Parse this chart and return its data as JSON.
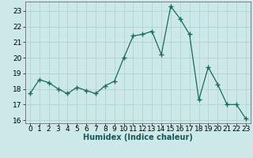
{
  "x": [
    0,
    1,
    2,
    3,
    4,
    5,
    6,
    7,
    8,
    9,
    10,
    11,
    12,
    13,
    14,
    15,
    16,
    17,
    18,
    19,
    20,
    21,
    22,
    23
  ],
  "y": [
    17.7,
    18.6,
    18.4,
    18.0,
    17.7,
    18.1,
    17.9,
    17.7,
    18.2,
    18.5,
    20.0,
    21.4,
    21.5,
    21.7,
    20.2,
    23.3,
    22.5,
    21.5,
    17.3,
    19.4,
    18.3,
    17.0,
    17.0,
    16.1
  ],
  "line_color": "#1a6b5a",
  "marker": "+",
  "marker_size": 4,
  "bg_color": "#cce8e8",
  "grid_color": "#aacfcf",
  "xlabel": "Humidex (Indice chaleur)",
  "ylim": [
    15.8,
    23.6
  ],
  "xlim": [
    -0.5,
    23.5
  ],
  "yticks": [
    16,
    17,
    18,
    19,
    20,
    21,
    22,
    23
  ],
  "xticks": [
    0,
    1,
    2,
    3,
    4,
    5,
    6,
    7,
    8,
    9,
    10,
    11,
    12,
    13,
    14,
    15,
    16,
    17,
    18,
    19,
    20,
    21,
    22,
    23
  ],
  "axis_fontsize": 6.5,
  "xlabel_fontsize": 7.0,
  "lw": 0.9
}
